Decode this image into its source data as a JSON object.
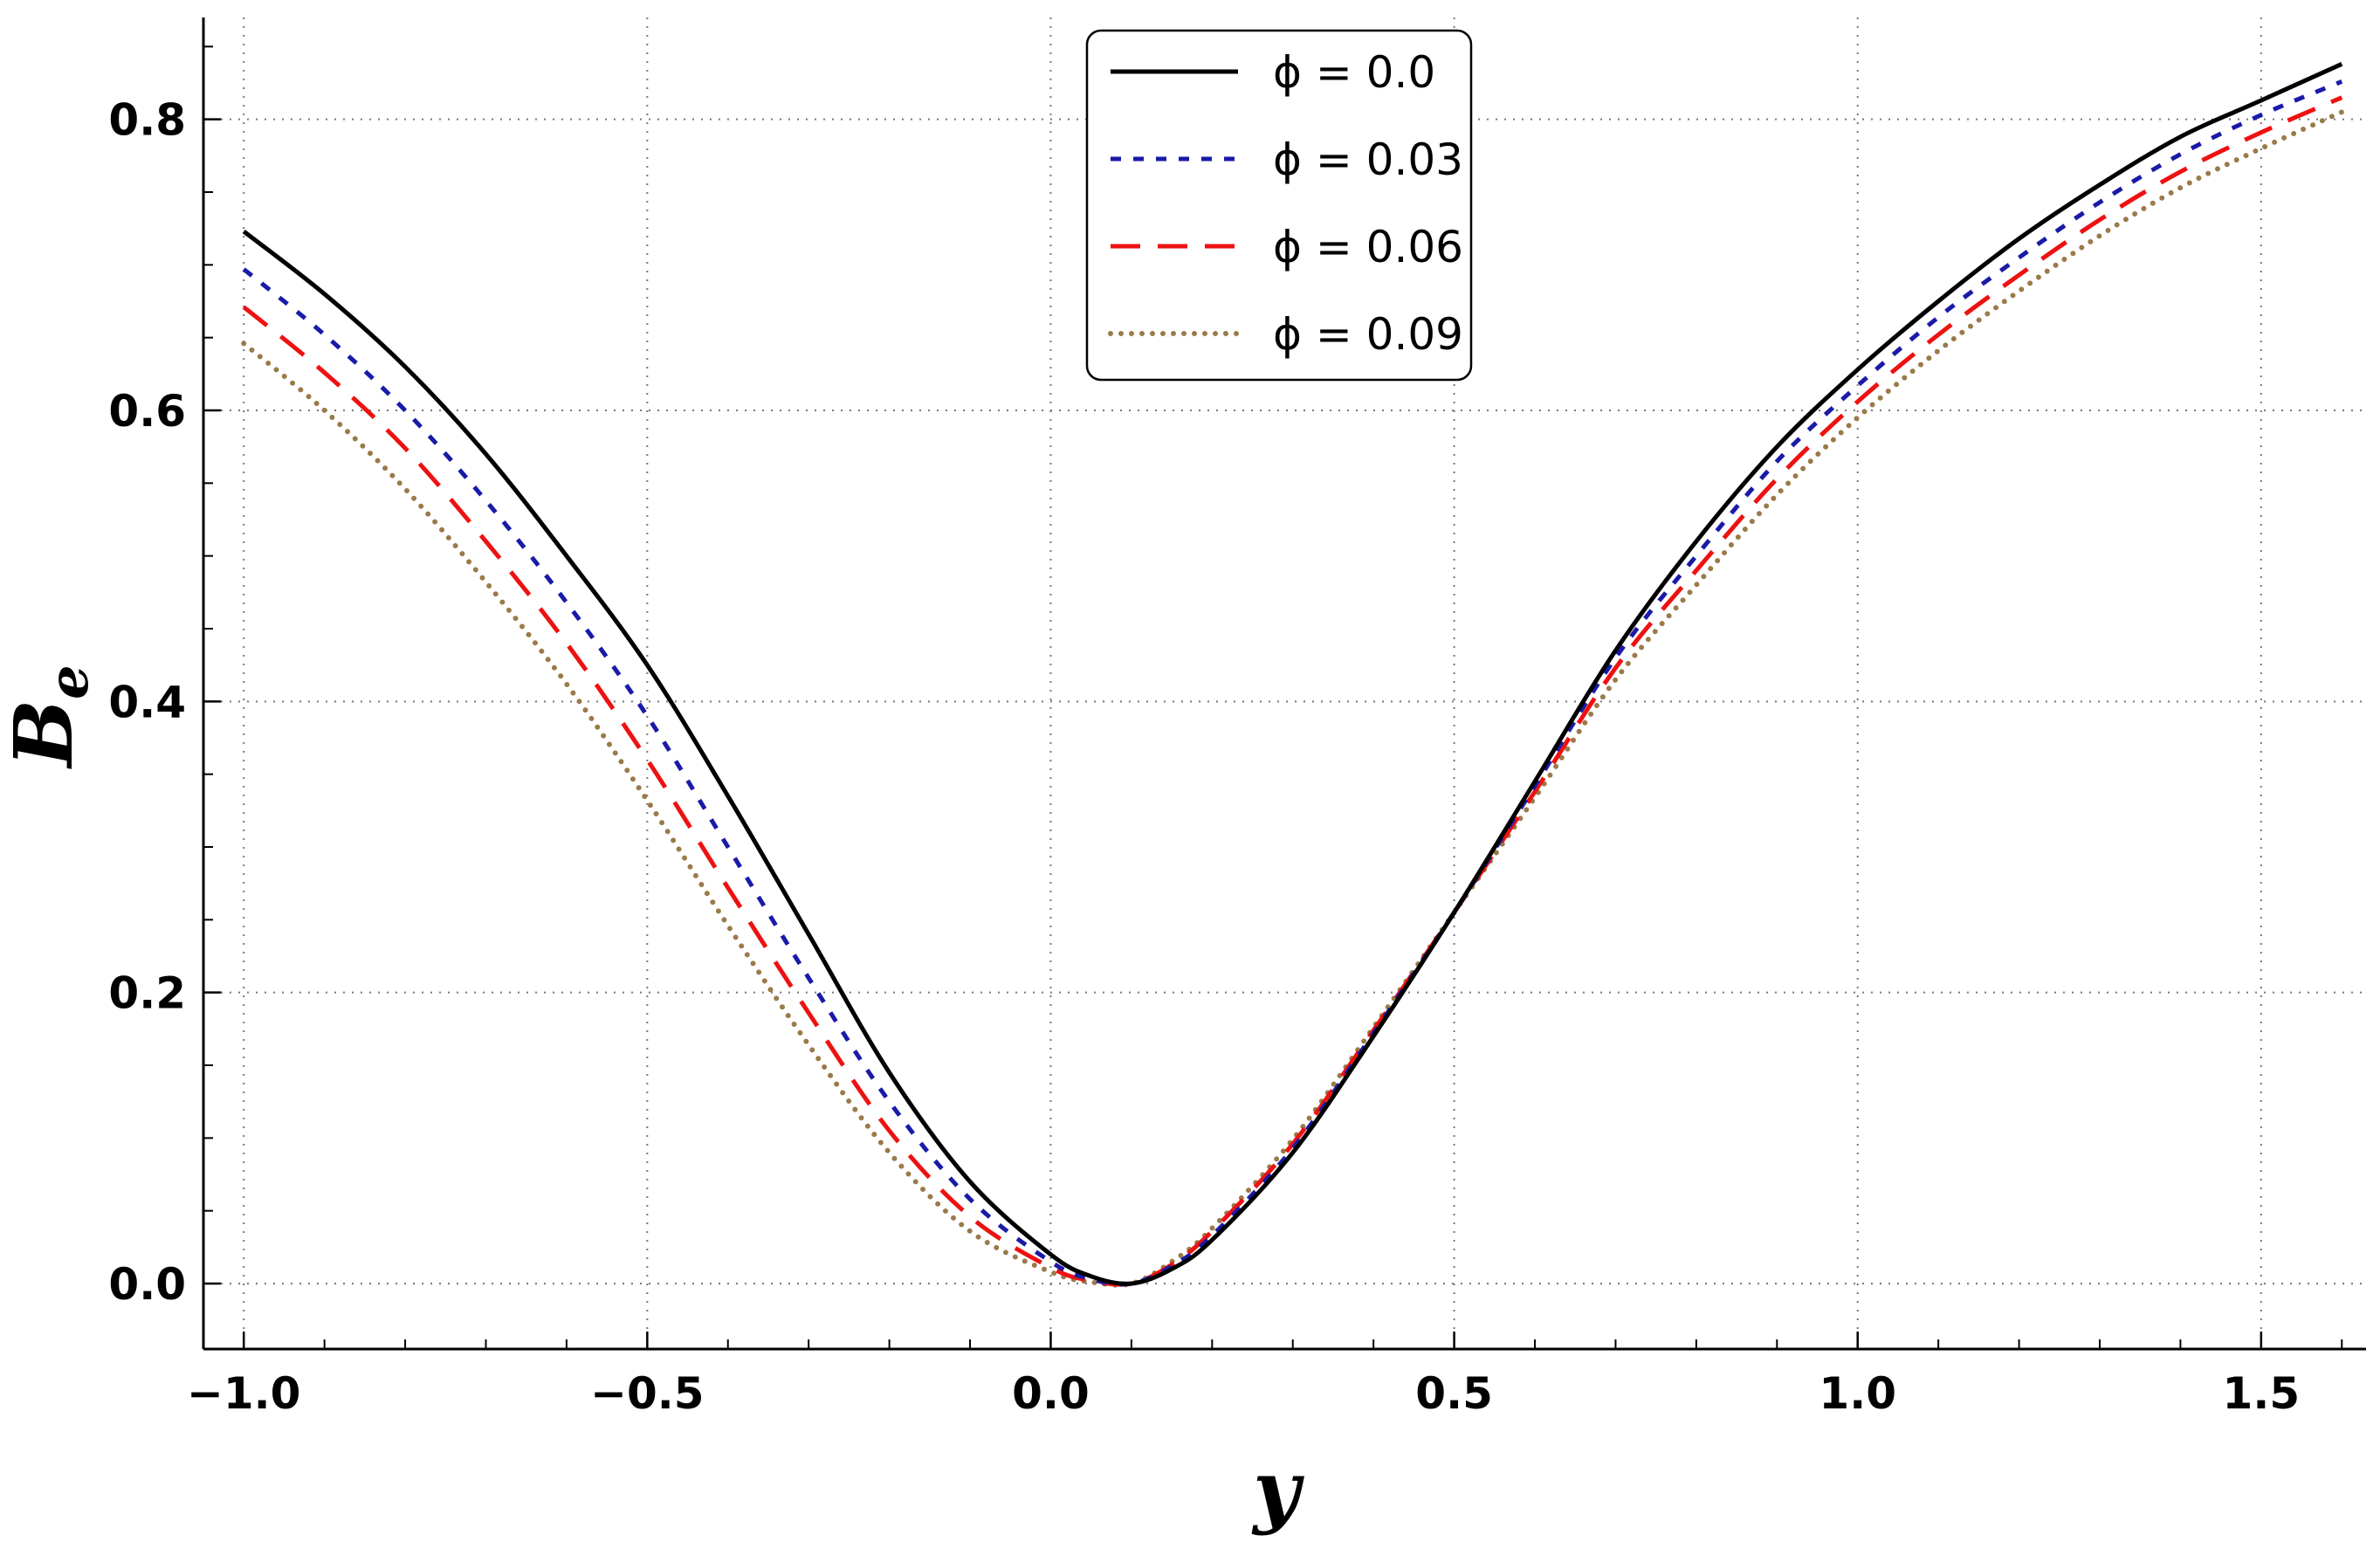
{
  "chart_data": {
    "type": "line",
    "title": "",
    "xlabel": "y",
    "ylabel": "B",
    "ylabel_subscript": "e",
    "xlim": [
      -1.05,
      1.63
    ],
    "ylim": [
      -0.045,
      0.87
    ],
    "xticks": [
      -1.0,
      -0.5,
      0.0,
      0.5,
      1.0,
      1.5
    ],
    "xtick_labels": [
      "−1.0",
      "−0.5",
      "0.0",
      "0.5",
      "1.0",
      "1.5"
    ],
    "yticks": [
      0.0,
      0.2,
      0.4,
      0.6,
      0.8
    ],
    "ytick_labels": [
      "0.0",
      "0.2",
      "0.4",
      "0.6",
      "0.8"
    ],
    "grid": true,
    "legend_position": "top-center",
    "series": [
      {
        "name": "ϕ = 0.0",
        "color": "#000000",
        "style": "solid",
        "x": [
          -1.0,
          -0.9,
          -0.8,
          -0.7,
          -0.6,
          -0.5,
          -0.4,
          -0.3,
          -0.2,
          -0.1,
          0.0,
          0.05,
          0.1,
          0.15,
          0.2,
          0.3,
          0.4,
          0.5,
          0.6,
          0.7,
          0.8,
          0.9,
          1.0,
          1.1,
          1.2,
          1.3,
          1.4,
          1.5,
          1.6
        ],
        "y": [
          0.723,
          0.68,
          0.63,
          0.57,
          0.5,
          0.425,
          0.335,
          0.24,
          0.145,
          0.07,
          0.02,
          0.005,
          0.0,
          0.01,
          0.03,
          0.09,
          0.17,
          0.255,
          0.345,
          0.435,
          0.51,
          0.575,
          0.628,
          0.675,
          0.718,
          0.755,
          0.788,
          0.813,
          0.838
        ]
      },
      {
        "name": "ϕ = 0.03",
        "color": "#1a1aa8",
        "style": "dashed",
        "x": [
          -1.0,
          -0.9,
          -0.8,
          -0.7,
          -0.6,
          -0.5,
          -0.4,
          -0.3,
          -0.2,
          -0.1,
          0.0,
          0.05,
          0.1,
          0.15,
          0.2,
          0.3,
          0.4,
          0.5,
          0.6,
          0.7,
          0.8,
          0.9,
          1.0,
          1.1,
          1.2,
          1.3,
          1.4,
          1.5,
          1.6
        ],
        "y": [
          0.697,
          0.652,
          0.6,
          0.538,
          0.468,
          0.39,
          0.3,
          0.21,
          0.125,
          0.058,
          0.015,
          0.003,
          0.0,
          0.012,
          0.033,
          0.093,
          0.172,
          0.255,
          0.342,
          0.43,
          0.5,
          0.565,
          0.617,
          0.664,
          0.705,
          0.743,
          0.776,
          0.803,
          0.826
        ]
      },
      {
        "name": "ϕ = 0.06",
        "color": "#ee1111",
        "style": "longdashed",
        "x": [
          -1.0,
          -0.9,
          -0.8,
          -0.7,
          -0.6,
          -0.5,
          -0.4,
          -0.3,
          -0.2,
          -0.1,
          0.0,
          0.05,
          0.1,
          0.15,
          0.2,
          0.3,
          0.4,
          0.5,
          0.6,
          0.7,
          0.8,
          0.9,
          1.0,
          1.1,
          1.2,
          1.3,
          1.4,
          1.5,
          1.6
        ],
        "y": [
          0.671,
          0.626,
          0.574,
          0.51,
          0.44,
          0.36,
          0.272,
          0.186,
          0.105,
          0.046,
          0.011,
          0.002,
          0.0,
          0.013,
          0.036,
          0.096,
          0.174,
          0.255,
          0.338,
          0.423,
          0.49,
          0.553,
          0.606,
          0.652,
          0.693,
          0.731,
          0.764,
          0.791,
          0.815
        ]
      },
      {
        "name": "ϕ = 0.09",
        "color": "#9a7a4a",
        "style": "dotted",
        "x": [
          -1.0,
          -0.9,
          -0.8,
          -0.7,
          -0.6,
          -0.5,
          -0.4,
          -0.3,
          -0.2,
          -0.1,
          0.0,
          0.05,
          0.1,
          0.15,
          0.2,
          0.3,
          0.4,
          0.5,
          0.6,
          0.7,
          0.8,
          0.9,
          1.0,
          1.1,
          1.2,
          1.3,
          1.4,
          1.5,
          1.6
        ],
        "y": [
          0.646,
          0.6,
          0.546,
          0.482,
          0.412,
          0.332,
          0.246,
          0.164,
          0.09,
          0.036,
          0.008,
          0.001,
          0.0,
          0.015,
          0.038,
          0.099,
          0.176,
          0.255,
          0.334,
          0.415,
          0.48,
          0.542,
          0.595,
          0.641,
          0.682,
          0.72,
          0.753,
          0.78,
          0.805
        ]
      }
    ]
  }
}
